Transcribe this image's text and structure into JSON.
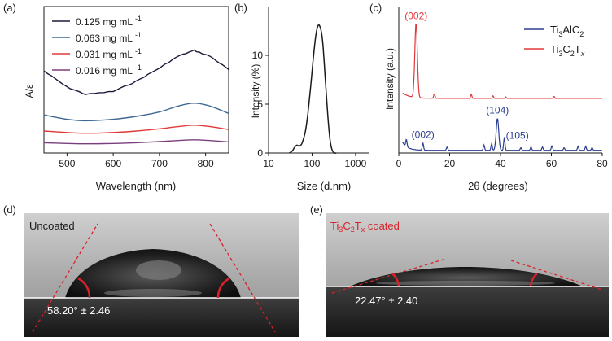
{
  "panels": {
    "a": "(a)",
    "b": "(b)",
    "c": "(c)",
    "d": "(d)",
    "e": "(e)"
  },
  "colors": {
    "c0125": "#1c1a3c",
    "c0063": "#3f6894",
    "c0031": "#e0383a",
    "c0016": "#7a3f7e",
    "ti3alc2": "#2b3f8f",
    "ti3c2tx": "#e0383a",
    "contact_line": "#d8232a"
  },
  "chart_data": [
    {
      "id": "a",
      "type": "line",
      "title": "",
      "xlabel": "Wavelength (nm)",
      "ylabel": "A/ε",
      "xlim": [
        450,
        850
      ],
      "ylim": [
        0,
        1
      ],
      "xticks": [
        500,
        600,
        700,
        800
      ],
      "legend_position": "top-left",
      "x": [
        450,
        500,
        540,
        600,
        650,
        700,
        740,
        775,
        810,
        850
      ],
      "series": [
        {
          "name": "0.125 mg mL",
          "sup": "-1",
          "color_key": "c0125",
          "values": [
            0.56,
            0.45,
            0.4,
            0.42,
            0.49,
            0.58,
            0.66,
            0.7,
            0.66,
            0.57
          ]
        },
        {
          "name": "0.063 mg mL",
          "sup": "-1",
          "color_key": "c0063",
          "values": [
            0.26,
            0.23,
            0.22,
            0.23,
            0.25,
            0.28,
            0.32,
            0.34,
            0.32,
            0.27
          ]
        },
        {
          "name": "0.031 mg mL",
          "sup": "-1",
          "color_key": "c0031",
          "values": [
            0.15,
            0.14,
            0.135,
            0.14,
            0.15,
            0.165,
            0.18,
            0.19,
            0.18,
            0.16
          ]
        },
        {
          "name": "0.016 mg mL",
          "sup": "-1",
          "color_key": "c0016",
          "values": [
            0.07,
            0.065,
            0.063,
            0.065,
            0.07,
            0.078,
            0.085,
            0.09,
            0.085,
            0.075
          ]
        }
      ]
    },
    {
      "id": "b",
      "type": "line",
      "title": "",
      "xlabel": "Size (d.nm)",
      "ylabel": "Intensity (%)",
      "xscale": "log",
      "xlim": [
        10,
        2000
      ],
      "ylim": [
        0,
        15
      ],
      "xticks": [
        10,
        100,
        1000
      ],
      "xtick_labels": [
        "10",
        "100",
        "1000"
      ],
      "yticks": [
        0,
        5,
        10
      ],
      "x": [
        30,
        35,
        40,
        45,
        50,
        55,
        60,
        70,
        80,
        90,
        100,
        110,
        120,
        130,
        140,
        150,
        165,
        180,
        200,
        220,
        240,
        260,
        280,
        300,
        330,
        360
      ],
      "values": [
        0,
        0.2,
        0.6,
        0.8,
        0.7,
        0.8,
        1.1,
        2.2,
        4.0,
        6.2,
        8.4,
        10.3,
        11.8,
        12.7,
        13.1,
        13.0,
        12.3,
        10.8,
        7.8,
        5.0,
        2.8,
        1.3,
        0.5,
        0.15,
        0,
        0
      ]
    },
    {
      "id": "c",
      "type": "line",
      "title": "",
      "xlabel": "2θ (degrees)",
      "ylabel": "Intensity (a.u.)",
      "xlim": [
        0,
        80
      ],
      "xticks": [
        0,
        20,
        40,
        60,
        80
      ],
      "legend_position": "top-right",
      "series": [
        {
          "name": "Ti3AlC2",
          "color_key": "ti3alc2",
          "baseline": 0.2,
          "peaks": [
            [
              3,
              0.55
            ],
            [
              9.5,
              0.55
            ],
            [
              19,
              0.25
            ],
            [
              33.5,
              0.4
            ],
            [
              36.5,
              0.5
            ],
            [
              38.8,
              2.4
            ],
            [
              41.5,
              1.0
            ],
            [
              48,
              0.2
            ],
            [
              52,
              0.25
            ],
            [
              56.5,
              0.25
            ],
            [
              60.2,
              0.35
            ],
            [
              65,
              0.2
            ],
            [
              70.5,
              0.3
            ],
            [
              73.5,
              0.3
            ],
            [
              76,
              0.2
            ]
          ],
          "annotations": [
            {
              "label": "(002)",
              "x": 9.5
            },
            {
              "label": "(104)",
              "x": 38.8
            },
            {
              "label": "(105)",
              "x": 41.5
            }
          ]
        },
        {
          "name": "Ti3C2Tx",
          "color_key": "ti3c2tx",
          "baseline": 4.1,
          "peaks": [
            [
              6.8,
              5.6
            ],
            [
              14,
              0.35
            ],
            [
              28.5,
              0.3
            ],
            [
              37,
              0.2
            ],
            [
              42,
              0.12
            ],
            [
              61,
              0.15
            ]
          ],
          "annotations": [
            {
              "label": "(002)",
              "x": 6.8
            }
          ]
        }
      ]
    }
  ],
  "legend_c": {
    "ti3alc2_parts": [
      "Ti",
      "3",
      "AlC",
      "2"
    ],
    "ti3c2tx_parts": [
      "Ti",
      "3",
      "C",
      "2",
      "T",
      "x"
    ]
  },
  "photos": {
    "d": {
      "label": "Uncoated",
      "angle": "58.20° ± 2.46",
      "contact_angle_deg": 58.2
    },
    "e": {
      "label_parts": [
        "Ti",
        "3",
        "C",
        "2",
        "T",
        "x",
        " coated"
      ],
      "angle": "22.47° ± 2.40",
      "contact_angle_deg": 22.47
    }
  }
}
